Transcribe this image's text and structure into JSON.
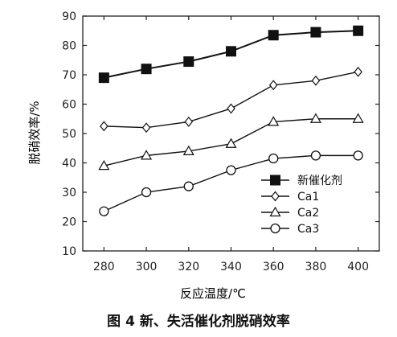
{
  "caption": "图 4  新、失活催化剂脱硝效率",
  "chart_data": {
    "type": "line",
    "xlabel": "反应温度/℃",
    "ylabel": "脱硝效率/%",
    "x": [
      280,
      300,
      320,
      340,
      360,
      380,
      400
    ],
    "xticks": [
      280,
      300,
      320,
      340,
      360,
      380,
      400
    ],
    "xlim": [
      270,
      410
    ],
    "ylim": [
      10,
      90
    ],
    "yticks": [
      10,
      20,
      30,
      40,
      50,
      60,
      70,
      80,
      90
    ],
    "legend_position": "bottom-right",
    "grid": false,
    "series": [
      {
        "name": "新催化剂",
        "marker": "filled-square",
        "values": [
          69,
          72,
          74.5,
          78,
          83.5,
          84.5,
          85
        ]
      },
      {
        "name": "Ca1",
        "marker": "open-diamond",
        "values": [
          52.5,
          52,
          54,
          58.5,
          66.5,
          68,
          71
        ]
      },
      {
        "name": "Ca2",
        "marker": "open-triangle",
        "values": [
          39,
          42.5,
          44,
          46.5,
          54,
          55,
          55
        ]
      },
      {
        "name": "Ca3",
        "marker": "open-circle",
        "values": [
          23.5,
          30,
          32,
          37.5,
          41.5,
          42.5,
          42.5
        ]
      }
    ]
  }
}
